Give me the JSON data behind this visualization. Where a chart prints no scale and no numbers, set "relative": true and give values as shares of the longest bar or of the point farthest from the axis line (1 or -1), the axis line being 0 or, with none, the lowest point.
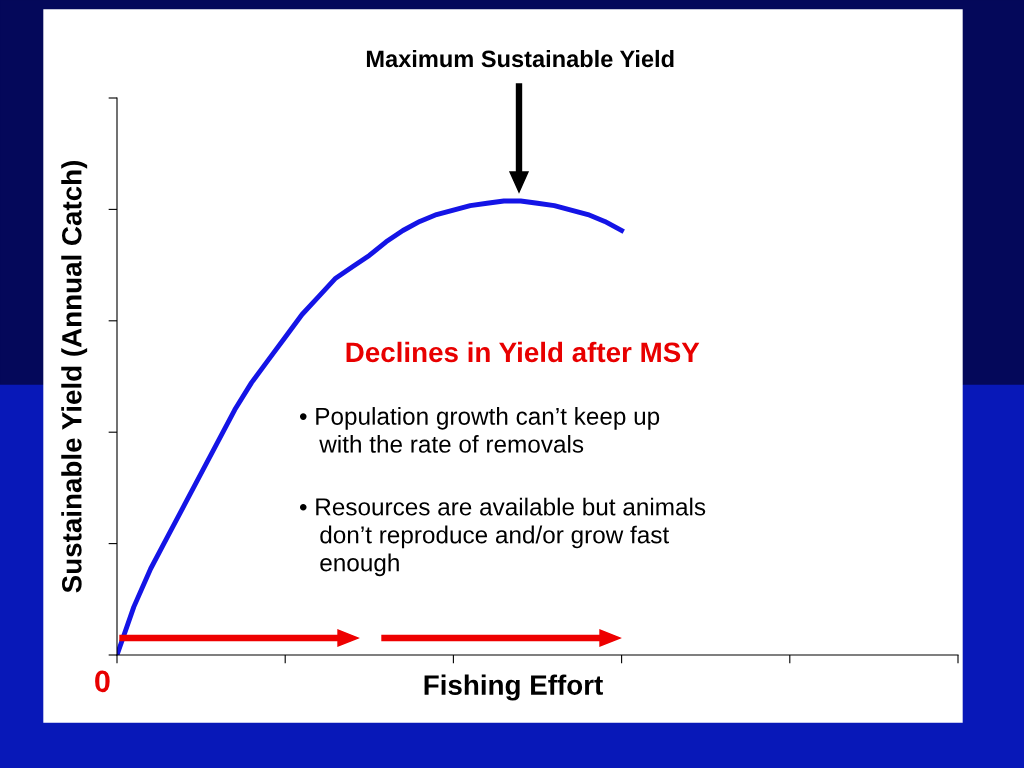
{
  "chart_data": {
    "type": "line",
    "relative": true,
    "xlabel": "Fishing Effort",
    "ylabel": "Sustainable Yield (Annual Catch)",
    "categories": [
      null,
      null,
      null,
      null,
      null,
      null,
      null,
      null,
      null,
      null,
      null,
      null,
      null,
      null,
      null,
      null,
      null,
      null,
      null,
      null,
      null,
      null,
      null,
      null,
      null,
      null,
      null,
      null,
      null,
      null,
      null,
      null,
      null,
      null,
      null,
      null,
      null,
      null,
      null,
      null,
      null,
      null,
      null,
      null,
      null,
      null,
      null,
      null,
      null,
      null,
      null
    ],
    "series": [
      {
        "color": "#1414e6",
        "values": [
          0,
          0.106,
          0.19,
          0.26,
          0.33,
          0.4,
          0.47,
          0.54,
          0.6,
          0.65,
          0.7,
          0.75,
          0.79,
          0.83,
          0.855,
          0.88,
          0.91,
          0.935,
          0.955,
          0.97,
          0.98,
          0.99,
          0.995,
          1.0,
          1.0,
          0.995,
          0.99,
          0.98,
          0.97,
          0.955,
          0.935,
          null,
          null,
          null,
          null,
          null,
          null,
          null,
          null,
          null,
          null,
          null,
          null,
          null,
          null,
          null,
          null,
          null,
          null,
          null,
          null
        ]
      }
    ],
    "annotations": [
      "0",
      "Maximum Sustainable Yield",
      "Declines in Yield after MSY",
      "• Population growth can’t keep up\n   with the rate of removals",
      "• Resources are available but animals\n   don’t reproduce and/or grow fast\n   enough"
    ],
    "grid": false,
    "marker": "none",
    "line_style": "solid"
  }
}
